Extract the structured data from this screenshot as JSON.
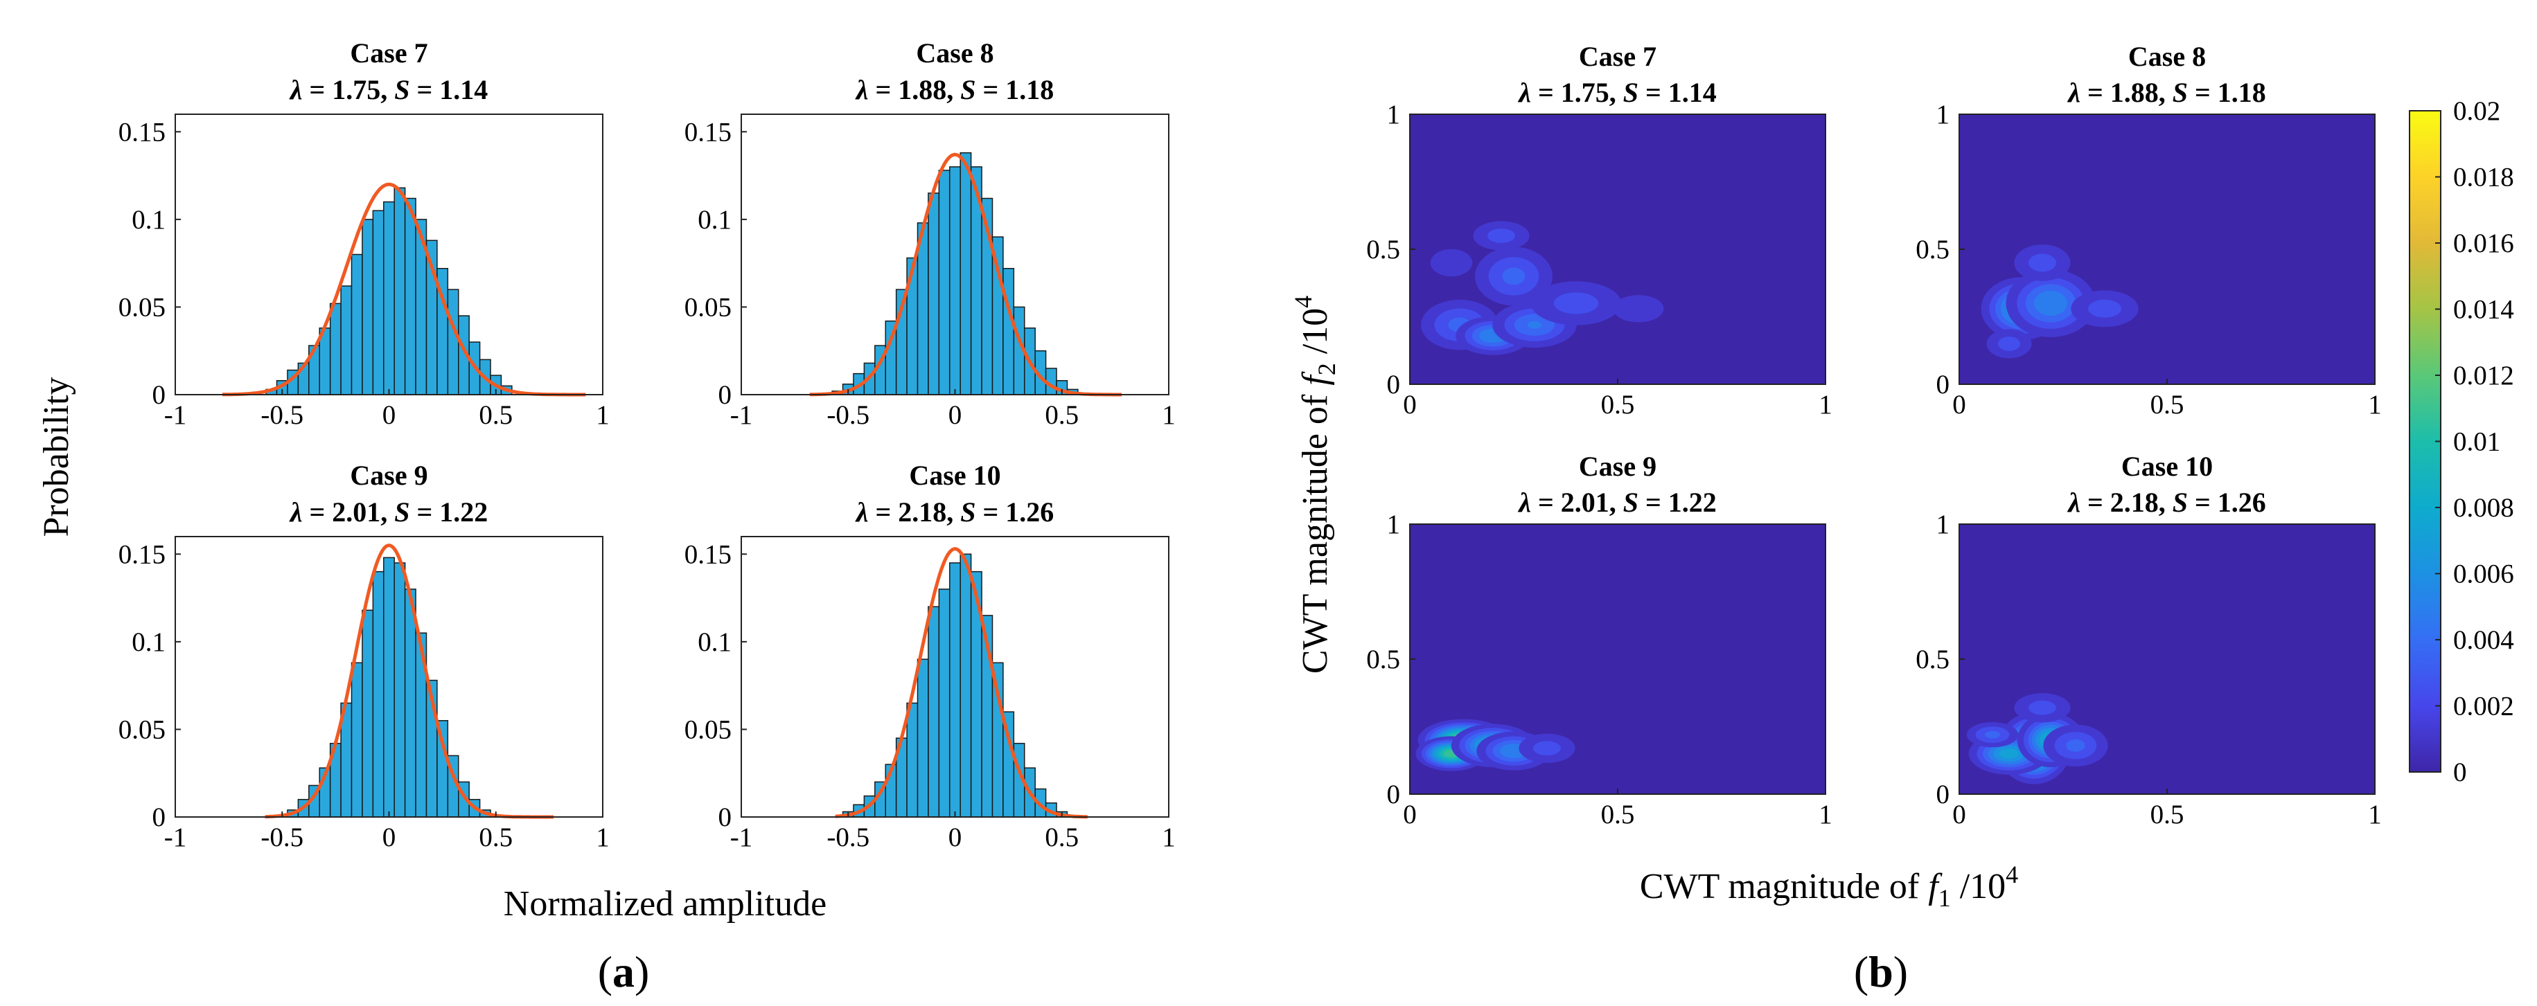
{
  "panel_labels": [
    {
      "pre": "(",
      "letter": "a",
      "post": ")"
    },
    {
      "pre": "(",
      "letter": "b",
      "post": ")"
    }
  ],
  "panel_a": {
    "xlabel": "Normalized amplitude",
    "ylabel": "Probability"
  },
  "panel_b": {
    "xlabel": {
      "prefix": "CWT magnitude of ",
      "var": "f",
      "sub": "1",
      "suffix": " /10",
      "sup": "4"
    },
    "ylabel": {
      "prefix": "CWT magnitude of ",
      "var": "f",
      "sub": "2",
      "suffix": " /10",
      "sup": "4"
    },
    "colorbar": {
      "ticks": [
        "0",
        "0.002",
        "0.004",
        "0.006",
        "0.008",
        "0.01",
        "0.012",
        "0.014",
        "0.016",
        "0.018",
        "0.02"
      ],
      "range": [
        0,
        0.02
      ],
      "colormap": "parula"
    }
  },
  "chart_data": [
    {
      "type": "bar",
      "panel": "a",
      "title": "Case 7",
      "subtitle": {
        "lam": "1.75",
        "s": "1.14"
      },
      "xlim": [
        -1,
        1
      ],
      "ylim": [
        0,
        0.16
      ],
      "xticks": [
        "-1",
        "-0.5",
        "0",
        "0.5",
        "1"
      ],
      "yticks": [
        "0",
        "0.05",
        "0.1",
        "0.15"
      ],
      "bar_width": 0.05,
      "bin_centers": [
        -0.55,
        -0.5,
        -0.45,
        -0.4,
        -0.35,
        -0.3,
        -0.25,
        -0.2,
        -0.15,
        -0.1,
        -0.05,
        0.0,
        0.05,
        0.1,
        0.15,
        0.2,
        0.25,
        0.3,
        0.35,
        0.4,
        0.45,
        0.5,
        0.55
      ],
      "values": [
        0.003,
        0.008,
        0.014,
        0.018,
        0.028,
        0.038,
        0.052,
        0.062,
        0.08,
        0.1,
        0.105,
        0.11,
        0.118,
        0.112,
        0.1,
        0.088,
        0.072,
        0.06,
        0.045,
        0.03,
        0.02,
        0.011,
        0.005
      ],
      "fit_peak": 0.12,
      "fit_mu": 0.0,
      "fit_sigma": 0.2,
      "fit_range": [
        -0.78,
        0.92
      ]
    },
    {
      "type": "bar",
      "panel": "a",
      "title": "Case 8",
      "subtitle": {
        "lam": "1.88",
        "s": "1.18"
      },
      "xlim": [
        -1,
        1
      ],
      "ylim": [
        0,
        0.16
      ],
      "xticks": [
        "-1",
        "-0.5",
        "0",
        "0.5",
        "1"
      ],
      "yticks": [
        "0",
        "0.05",
        "0.1",
        "0.15"
      ],
      "bar_width": 0.05,
      "bin_centers": [
        -0.55,
        -0.5,
        -0.45,
        -0.4,
        -0.35,
        -0.3,
        -0.25,
        -0.2,
        -0.15,
        -0.1,
        -0.05,
        0.0,
        0.05,
        0.1,
        0.15,
        0.2,
        0.25,
        0.3,
        0.35,
        0.4,
        0.45,
        0.5,
        0.55
      ],
      "values": [
        0.002,
        0.006,
        0.012,
        0.018,
        0.028,
        0.042,
        0.06,
        0.078,
        0.098,
        0.115,
        0.128,
        0.13,
        0.138,
        0.13,
        0.112,
        0.09,
        0.072,
        0.05,
        0.038,
        0.025,
        0.015,
        0.008,
        0.003
      ],
      "fit_peak": 0.137,
      "fit_mu": 0.0,
      "fit_sigma": 0.175,
      "fit_range": [
        -0.68,
        0.78
      ]
    },
    {
      "type": "bar",
      "panel": "a",
      "title": "Case 9",
      "subtitle": {
        "lam": "2.01",
        "s": "1.22"
      },
      "xlim": [
        -1,
        1
      ],
      "ylim": [
        0,
        0.16
      ],
      "xticks": [
        "-1",
        "-0.5",
        "0",
        "0.5",
        "1"
      ],
      "yticks": [
        "0",
        "0.05",
        "0.1",
        "0.15"
      ],
      "bar_width": 0.05,
      "bin_centers": [
        -0.45,
        -0.4,
        -0.35,
        -0.3,
        -0.25,
        -0.2,
        -0.15,
        -0.1,
        -0.05,
        0.0,
        0.05,
        0.1,
        0.15,
        0.2,
        0.25,
        0.3,
        0.35,
        0.4,
        0.45
      ],
      "values": [
        0.004,
        0.01,
        0.018,
        0.028,
        0.042,
        0.065,
        0.088,
        0.118,
        0.14,
        0.148,
        0.145,
        0.13,
        0.105,
        0.078,
        0.055,
        0.035,
        0.02,
        0.01,
        0.004
      ],
      "fit_peak": 0.155,
      "fit_mu": 0.0,
      "fit_sigma": 0.155,
      "fit_range": [
        -0.58,
        0.77
      ]
    },
    {
      "type": "bar",
      "panel": "a",
      "title": "Case 10",
      "subtitle": {
        "lam": "2.18",
        "s": "1.26"
      },
      "xlim": [
        -1,
        1
      ],
      "ylim": [
        0,
        0.16
      ],
      "xticks": [
        "-1",
        "-0.5",
        "0",
        "0.5",
        "1"
      ],
      "yticks": [
        "0",
        "0.05",
        "0.1",
        "0.15"
      ],
      "bar_width": 0.05,
      "bin_centers": [
        -0.5,
        -0.45,
        -0.4,
        -0.35,
        -0.3,
        -0.25,
        -0.2,
        -0.15,
        -0.1,
        -0.05,
        0.0,
        0.05,
        0.1,
        0.15,
        0.2,
        0.25,
        0.3,
        0.35,
        0.4,
        0.45,
        0.5
      ],
      "values": [
        0.003,
        0.007,
        0.012,
        0.02,
        0.03,
        0.045,
        0.065,
        0.09,
        0.12,
        0.13,
        0.145,
        0.15,
        0.14,
        0.115,
        0.088,
        0.06,
        0.042,
        0.028,
        0.016,
        0.008,
        0.003
      ],
      "fit_peak": 0.153,
      "fit_mu": 0.0,
      "fit_sigma": 0.16,
      "fit_range": [
        -0.56,
        0.62
      ]
    },
    {
      "type": "heatmap",
      "panel": "b",
      "title": "Case 7",
      "subtitle": {
        "lam": "1.75",
        "s": "1.14"
      },
      "xlim": [
        0,
        1
      ],
      "ylim": [
        0,
        1
      ],
      "xticks": [
        "0",
        "0.5",
        "1"
      ],
      "yticks": [
        "0",
        "0.5",
        "1"
      ],
      "blobs": [
        [
          0.12,
          0.22,
          0.06,
          0.06,
          0.004
        ],
        [
          0.2,
          0.18,
          0.05,
          0.04,
          0.006
        ],
        [
          0.3,
          0.22,
          0.06,
          0.05,
          0.005
        ],
        [
          0.25,
          0.4,
          0.06,
          0.07,
          0.004
        ],
        [
          0.22,
          0.55,
          0.05,
          0.04,
          0.003
        ],
        [
          0.4,
          0.3,
          0.08,
          0.06,
          0.003
        ],
        [
          0.55,
          0.28,
          0.06,
          0.05,
          0.002
        ],
        [
          0.1,
          0.45,
          0.05,
          0.05,
          0.002
        ]
      ]
    },
    {
      "type": "heatmap",
      "panel": "b",
      "title": "Case 8",
      "subtitle": {
        "lam": "1.88",
        "s": "1.18"
      },
      "xlim": [
        0,
        1
      ],
      "ylim": [
        0,
        1
      ],
      "xticks": [
        "0",
        "0.5",
        "1"
      ],
      "yticks": [
        "0",
        "0.5",
        "1"
      ],
      "blobs": [
        [
          0.15,
          0.28,
          0.05,
          0.06,
          0.008
        ],
        [
          0.22,
          0.3,
          0.06,
          0.07,
          0.006
        ],
        [
          0.2,
          0.45,
          0.05,
          0.05,
          0.003
        ],
        [
          0.35,
          0.28,
          0.06,
          0.05,
          0.003
        ],
        [
          0.12,
          0.15,
          0.04,
          0.04,
          0.003
        ]
      ]
    },
    {
      "type": "heatmap",
      "panel": "b",
      "title": "Case 9",
      "subtitle": {
        "lam": "2.01",
        "s": "1.22"
      },
      "xlim": [
        0,
        1
      ],
      "ylim": [
        0,
        1
      ],
      "xticks": [
        "0",
        "0.5",
        "1"
      ],
      "yticks": [
        "0",
        "0.5",
        "1"
      ],
      "blobs": [
        [
          0.13,
          0.2,
          0.05,
          0.035,
          0.014
        ],
        [
          0.1,
          0.15,
          0.04,
          0.03,
          0.012
        ],
        [
          0.2,
          0.18,
          0.05,
          0.04,
          0.009
        ],
        [
          0.25,
          0.16,
          0.05,
          0.04,
          0.006
        ],
        [
          0.33,
          0.17,
          0.05,
          0.04,
          0.003
        ]
      ]
    },
    {
      "type": "heatmap",
      "panel": "b",
      "title": "Case 10",
      "subtitle": {
        "lam": "2.18",
        "s": "1.26"
      },
      "xlim": [
        0,
        1
      ],
      "ylim": [
        0,
        1
      ],
      "xticks": [
        "0",
        "0.5",
        "1"
      ],
      "yticks": [
        "0",
        "0.5",
        "1"
      ],
      "blobs": [
        [
          0.18,
          0.17,
          0.04,
          0.06,
          0.014
        ],
        [
          0.12,
          0.15,
          0.05,
          0.04,
          0.008
        ],
        [
          0.22,
          0.2,
          0.04,
          0.05,
          0.009
        ],
        [
          0.08,
          0.22,
          0.04,
          0.03,
          0.004
        ],
        [
          0.28,
          0.18,
          0.05,
          0.05,
          0.004
        ],
        [
          0.2,
          0.32,
          0.05,
          0.04,
          0.003
        ]
      ]
    }
  ]
}
